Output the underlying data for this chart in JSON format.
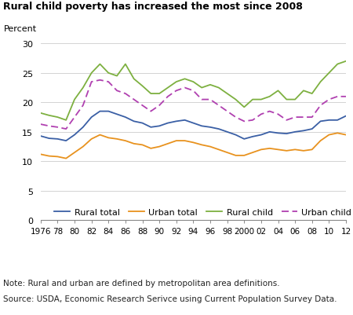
{
  "title": "Rural child poverty has increased the most since 2008",
  "ylabel": "Percent",
  "note": "Note: Rural and urban are defined by metropolitan area definitions.",
  "source": "Source: USDA, Economic Research Serivce using Current Population Survey Data.",
  "years": [
    1976,
    1977,
    1978,
    1979,
    1980,
    1981,
    1982,
    1983,
    1984,
    1985,
    1986,
    1987,
    1988,
    1989,
    1990,
    1991,
    1992,
    1993,
    1994,
    1995,
    1996,
    1997,
    1998,
    1999,
    2000,
    2001,
    2002,
    2003,
    2004,
    2005,
    2006,
    2007,
    2008,
    2009,
    2010,
    2011,
    2012
  ],
  "rural_total": [
    14.3,
    13.9,
    13.8,
    13.5,
    14.5,
    15.8,
    17.5,
    18.5,
    18.5,
    18.0,
    17.5,
    16.8,
    16.5,
    15.8,
    16.0,
    16.5,
    16.8,
    17.0,
    16.5,
    16.0,
    15.8,
    15.5,
    15.0,
    14.5,
    13.8,
    14.2,
    14.5,
    15.0,
    14.8,
    14.7,
    15.0,
    15.2,
    15.5,
    16.8,
    17.0,
    17.0,
    17.7
  ],
  "urban_total": [
    11.2,
    10.9,
    10.8,
    10.5,
    11.5,
    12.5,
    13.8,
    14.5,
    14.0,
    13.8,
    13.5,
    13.0,
    12.8,
    12.2,
    12.5,
    13.0,
    13.5,
    13.5,
    13.2,
    12.8,
    12.5,
    12.0,
    11.5,
    11.0,
    11.0,
    11.5,
    12.0,
    12.2,
    12.0,
    11.8,
    12.0,
    11.8,
    12.0,
    13.5,
    14.5,
    14.8,
    14.5
  ],
  "rural_child": [
    18.2,
    17.8,
    17.5,
    17.0,
    20.5,
    22.5,
    25.0,
    26.5,
    25.0,
    24.5,
    26.5,
    24.0,
    22.8,
    21.5,
    21.5,
    22.5,
    23.5,
    24.0,
    23.5,
    22.5,
    23.0,
    22.5,
    21.5,
    20.5,
    19.2,
    20.5,
    20.5,
    21.0,
    22.0,
    20.5,
    20.5,
    22.0,
    21.5,
    23.5,
    25.0,
    26.5,
    27.0
  ],
  "urban_child": [
    16.3,
    16.0,
    15.8,
    15.5,
    17.5,
    19.5,
    23.5,
    23.8,
    23.5,
    22.0,
    21.5,
    20.5,
    19.5,
    18.5,
    19.5,
    21.0,
    22.0,
    22.5,
    22.0,
    20.5,
    20.5,
    19.5,
    18.5,
    17.5,
    16.8,
    17.0,
    18.0,
    18.5,
    18.0,
    17.0,
    17.5,
    17.5,
    17.5,
    19.5,
    20.5,
    21.0,
    21.0
  ],
  "colors": {
    "rural_total": "#3a5fa5",
    "urban_total": "#e8921e",
    "rural_child": "#7db040",
    "urban_child": "#b040b0"
  },
  "ylim": [
    0,
    30
  ],
  "yticks": [
    0,
    5,
    10,
    15,
    20,
    25,
    30
  ],
  "xtick_labels": [
    "1976",
    "78",
    "80",
    "82",
    "84",
    "86",
    "88",
    "90",
    "92",
    "94",
    "96",
    "98",
    "2000",
    "02",
    "04",
    "06",
    "08",
    "10",
    "12"
  ],
  "xtick_years": [
    1976,
    1978,
    1980,
    1982,
    1984,
    1986,
    1988,
    1990,
    1992,
    1994,
    1996,
    1998,
    2000,
    2002,
    2004,
    2006,
    2008,
    2010,
    2012
  ],
  "legend_labels": [
    "Rural total",
    "Urban total",
    "Rural child",
    "Urban child"
  ]
}
